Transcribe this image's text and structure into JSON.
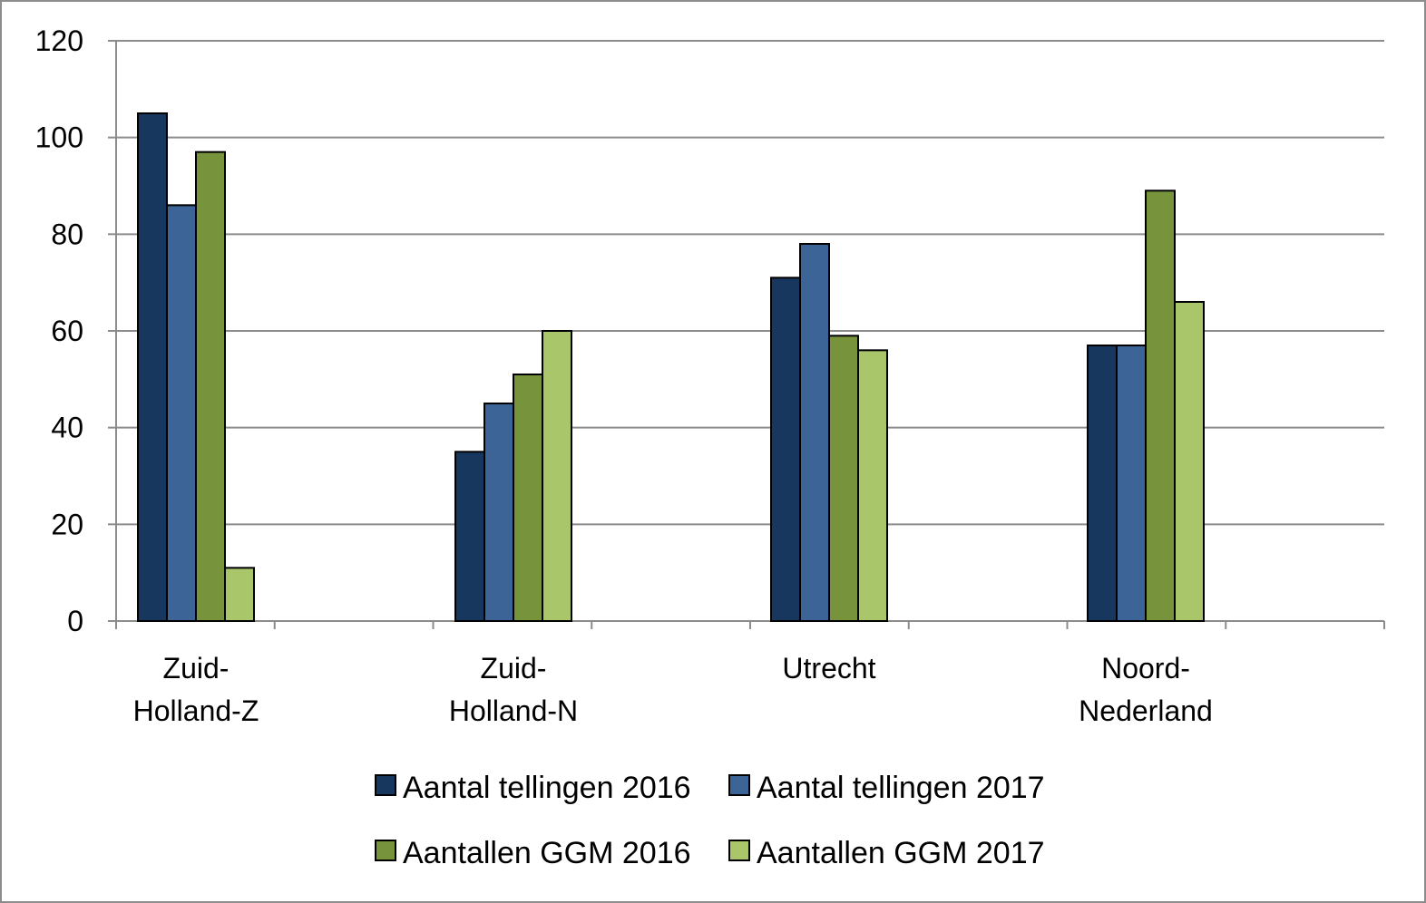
{
  "chart_data": {
    "type": "bar",
    "title": "",
    "xlabel": "",
    "ylabel": "",
    "ylim": [
      0,
      120
    ],
    "yticks": [
      0,
      20,
      40,
      60,
      80,
      100,
      120
    ],
    "grid": true,
    "legend_position": "bottom",
    "categories": [
      [
        "Zuid-",
        "Holland-Z"
      ],
      [
        "Zuid-",
        "Holland-N"
      ],
      [
        "Utrecht"
      ],
      [
        "Noord-",
        "Nederland"
      ]
    ],
    "series": [
      {
        "name": "Aantal tellingen 2016",
        "color": "#17375e",
        "values": [
          105,
          35,
          71,
          57
        ]
      },
      {
        "name": "Aantal tellingen 2017",
        "color": "#3c6496",
        "values": [
          86,
          45,
          78,
          57
        ]
      },
      {
        "name": "Aantallen GGM 2016",
        "color": "#77933c",
        "values": [
          97,
          51,
          59,
          89
        ]
      },
      {
        "name": "Aantallen GGM 2017",
        "color": "#a9c66b",
        "values": [
          11,
          60,
          56,
          66
        ]
      }
    ]
  }
}
